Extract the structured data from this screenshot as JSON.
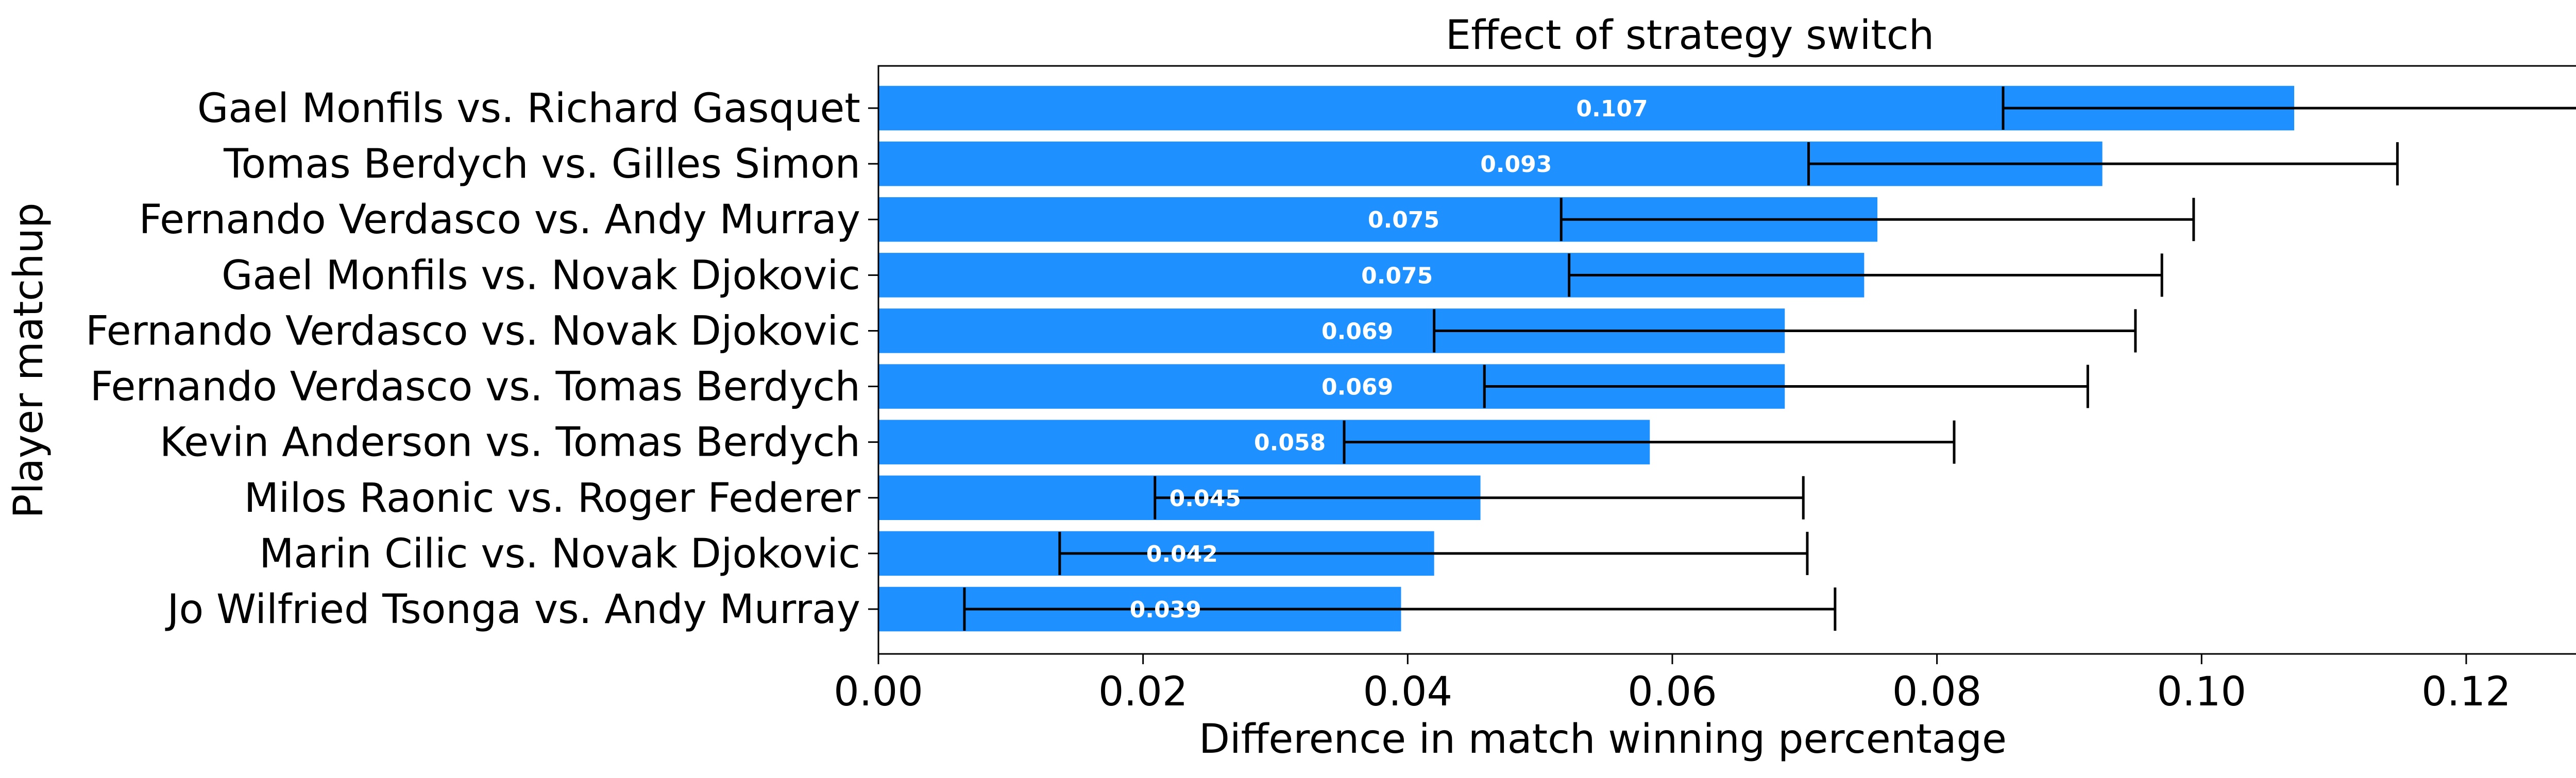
{
  "chart_data": {
    "type": "bar",
    "orientation": "horizontal",
    "title": "Effect of strategy switch",
    "xlabel": "Difference in match winning percentage",
    "ylabel": "Player matchup",
    "xlim": [
      0.0,
      0.1355
    ],
    "xticks": [
      0.0,
      0.02,
      0.04,
      0.06,
      0.08,
      0.1,
      0.12
    ],
    "xtick_labels": [
      "0.00",
      "0.02",
      "0.04",
      "0.06",
      "0.08",
      "0.10",
      "0.12"
    ],
    "grid": false,
    "bar_color": "#1E90FF",
    "error_color": "#000000",
    "label_color": "#ffffff",
    "categories": [
      "Gael Monfils vs. Richard Gasquet",
      "Tomas Berdych vs. Gilles Simon",
      "Fernando Verdasco vs. Andy Murray",
      "Gael Monfils vs. Novak Djokovic",
      "Fernando Verdasco vs. Novak Djokovic",
      "Fernando Verdasco vs. Tomas Berdych",
      "Kevin Anderson vs. Tomas Berdych",
      "Milos Raonic vs. Roger Federer",
      "Marin Cilic vs. Novak Djokovic",
      "Jo Wilfried Tsonga vs. Andy Murray"
    ],
    "values": [
      0.107,
      0.0925,
      0.0755,
      0.0745,
      0.0685,
      0.0685,
      0.0583,
      0.0455,
      0.042,
      0.0395
    ],
    "value_labels": [
      "0.107",
      "0.093",
      "0.075",
      "0.075",
      "0.069",
      "0.069",
      "0.058",
      "0.045",
      "0.042",
      "0.039"
    ],
    "error_low": [
      0.085,
      0.0703,
      0.0516,
      0.0522,
      0.042,
      0.0458,
      0.0352,
      0.0209,
      0.0137,
      0.0065
    ],
    "error_high": [
      0.129,
      0.1148,
      0.0994,
      0.097,
      0.095,
      0.0914,
      0.0813,
      0.0699,
      0.0702,
      0.0723
    ]
  }
}
